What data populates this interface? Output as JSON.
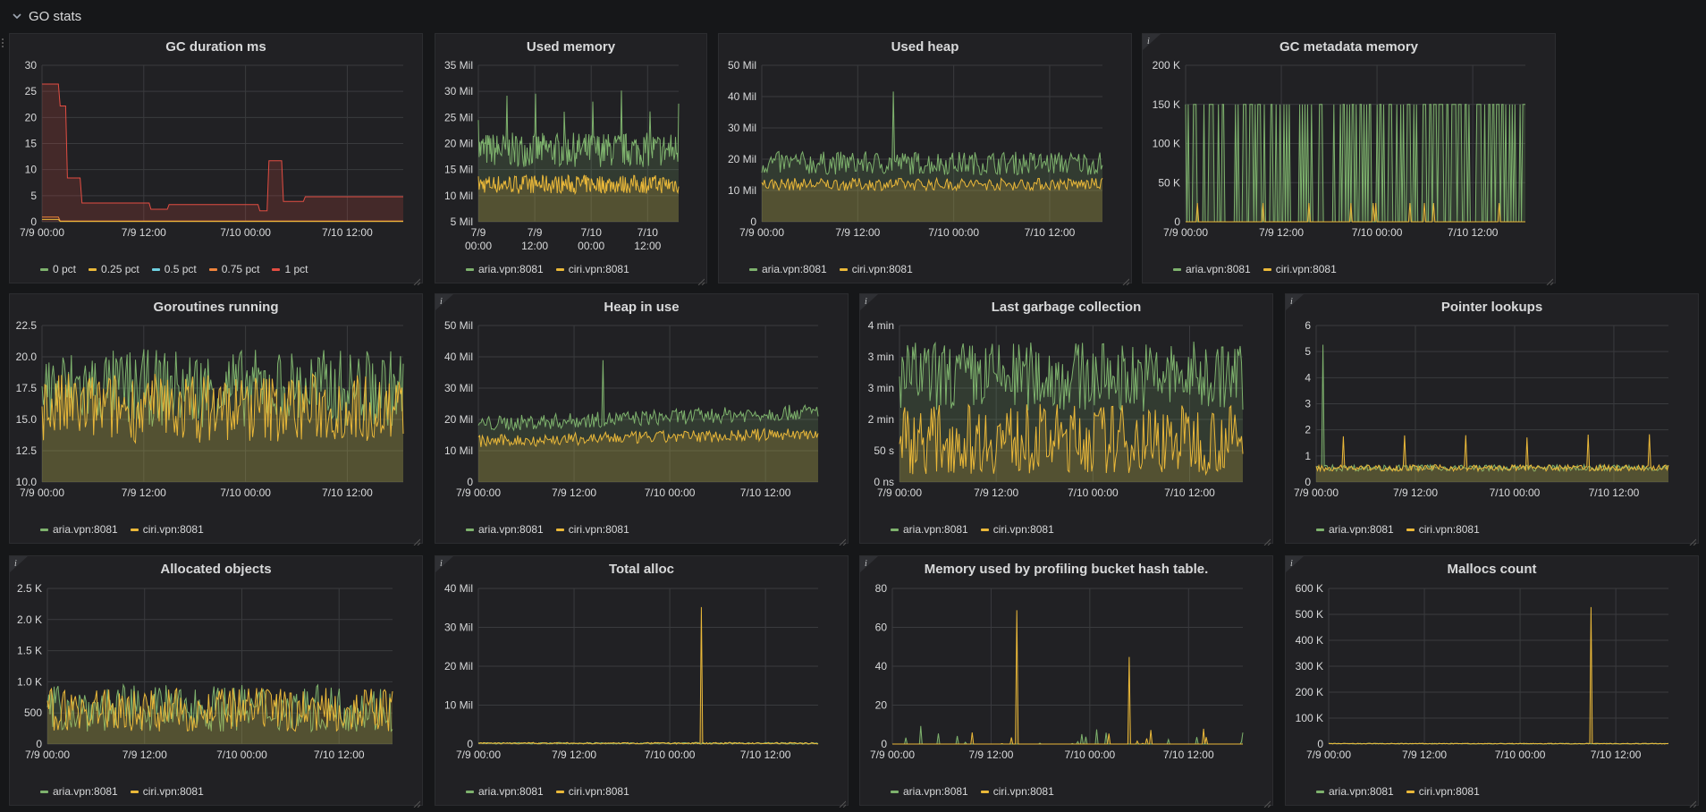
{
  "row": {
    "title": "GO stats"
  },
  "colors": {
    "aria": "#7eb26d",
    "ciri": "#eab839",
    "pct0": "#7eb26d",
    "pct25": "#eab839",
    "pct50": "#6ed0e0",
    "pct75": "#ef843c",
    "pct100": "#e24d42"
  },
  "panels": [
    {
      "id": "gc-duration",
      "title": "GC duration ms",
      "info": false,
      "y_ticks": [
        "30",
        "25",
        "20",
        "15",
        "10",
        "5",
        "0"
      ],
      "x_ticks": [
        "7/9 00:00",
        "7/9 12:00",
        "7/10 00:00",
        "7/10 12:00"
      ],
      "legend": [
        "0 pct",
        "0.25 pct",
        "0.5 pct",
        "0.75 pct",
        "1 pct"
      ]
    },
    {
      "id": "used-memory",
      "title": "Used memory",
      "info": false,
      "y_ticks": [
        "35 Mil",
        "30 Mil",
        "25 Mil",
        "20 Mil",
        "15 Mil",
        "10 Mil",
        "5 Mil"
      ],
      "x_ticks": [
        "7/9\n00:00",
        "7/9\n12:00",
        "7/10\n00:00",
        "7/10\n12:00"
      ],
      "legend": [
        "aria.vpn:8081",
        "ciri.vpn:8081"
      ]
    },
    {
      "id": "used-heap",
      "title": "Used heap",
      "info": false,
      "y_ticks": [
        "50 Mil",
        "40 Mil",
        "30 Mil",
        "20 Mil",
        "10 Mil",
        "0"
      ],
      "x_ticks": [
        "7/9 00:00",
        "7/9 12:00",
        "7/10 00:00",
        "7/10 12:00"
      ],
      "legend": [
        "aria.vpn:8081",
        "ciri.vpn:8081"
      ]
    },
    {
      "id": "gc-metadata-memory",
      "title": "GC metadata memory",
      "info": true,
      "y_ticks": [
        "200 K",
        "150 K",
        "100 K",
        "50 K",
        "0"
      ],
      "x_ticks": [
        "7/9 00:00",
        "7/9 12:00",
        "7/10 00:00",
        "7/10 12:00"
      ],
      "legend": [
        "aria.vpn:8081",
        "ciri.vpn:8081"
      ]
    },
    {
      "id": "goroutines-running",
      "title": "Goroutines running",
      "info": false,
      "y_ticks": [
        "22.5",
        "20.0",
        "17.5",
        "15.0",
        "12.5",
        "10.0"
      ],
      "x_ticks": [
        "7/9 00:00",
        "7/9 12:00",
        "7/10 00:00",
        "7/10 12:00"
      ],
      "legend": [
        "aria.vpn:8081",
        "ciri.vpn:8081"
      ]
    },
    {
      "id": "heap-in-use",
      "title": "Heap in use",
      "info": true,
      "y_ticks": [
        "50 Mil",
        "40 Mil",
        "30 Mil",
        "20 Mil",
        "10 Mil",
        "0"
      ],
      "x_ticks": [
        "7/9 00:00",
        "7/9 12:00",
        "7/10 00:00",
        "7/10 12:00"
      ],
      "legend": [
        "aria.vpn:8081",
        "ciri.vpn:8081"
      ]
    },
    {
      "id": "last-gc",
      "title": "Last garbage collection",
      "info": true,
      "y_ticks": [
        "4 min",
        "3 min",
        "3 min",
        "2 min",
        "50 s",
        "0 ns"
      ],
      "x_ticks": [
        "7/9 00:00",
        "7/9 12:00",
        "7/10 00:00",
        "7/10 12:00"
      ],
      "legend": [
        "aria.vpn:8081",
        "ciri.vpn:8081"
      ]
    },
    {
      "id": "pointer-lookups",
      "title": "Pointer lookups",
      "info": true,
      "y_ticks": [
        "6",
        "5",
        "4",
        "3",
        "2",
        "1",
        "0"
      ],
      "x_ticks": [
        "7/9 00:00",
        "7/9 12:00",
        "7/10 00:00",
        "7/10 12:00"
      ],
      "legend": [
        "aria.vpn:8081",
        "ciri.vpn:8081"
      ]
    },
    {
      "id": "allocated-objects",
      "title": "Allocated objects",
      "info": true,
      "y_ticks": [
        "2.5 K",
        "2.0 K",
        "1.5 K",
        "1.0 K",
        "500",
        "0"
      ],
      "x_ticks": [
        "7/9 00:00",
        "7/9 12:00",
        "7/10 00:00",
        "7/10 12:00"
      ],
      "legend": [
        "aria.vpn:8081",
        "ciri.vpn:8081"
      ]
    },
    {
      "id": "total-alloc",
      "title": "Total alloc",
      "info": true,
      "y_ticks": [
        "40 Mil",
        "30 Mil",
        "20 Mil",
        "10 Mil",
        "0"
      ],
      "x_ticks": [
        "7/9 00:00",
        "7/9 12:00",
        "7/10 00:00",
        "7/10 12:00"
      ],
      "legend": [
        "aria.vpn:8081",
        "ciri.vpn:8081"
      ]
    },
    {
      "id": "profiling-bucket",
      "title": "Memory used by profiling bucket hash table.",
      "info": true,
      "y_ticks": [
        "80",
        "60",
        "40",
        "20",
        "0"
      ],
      "x_ticks": [
        "7/9 00:00",
        "7/9 12:00",
        "7/10 00:00",
        "7/10 12:00"
      ],
      "legend": [
        "aria.vpn:8081",
        "ciri.vpn:8081"
      ]
    },
    {
      "id": "mallocs-count",
      "title": "Mallocs count",
      "info": true,
      "y_ticks": [
        "600 K",
        "500 K",
        "400 K",
        "300 K",
        "200 K",
        "100 K",
        "0"
      ],
      "x_ticks": [
        "7/9 00:00",
        "7/9 12:00",
        "7/10 00:00",
        "7/10 12:00"
      ],
      "legend": [
        "aria.vpn:8081",
        "ciri.vpn:8081"
      ]
    }
  ]
}
